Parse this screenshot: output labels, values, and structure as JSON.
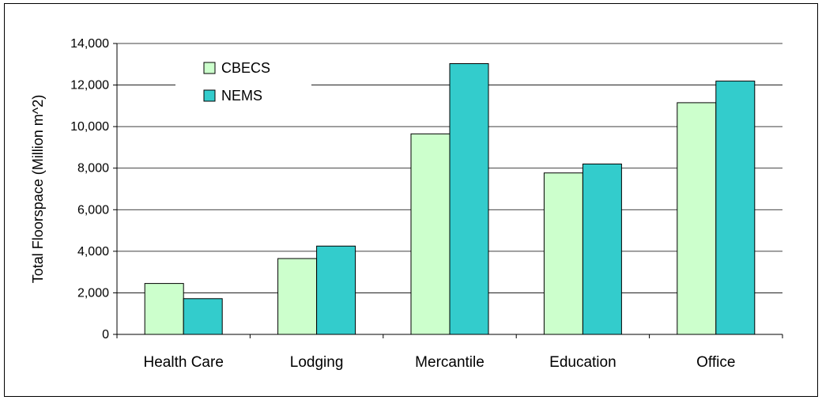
{
  "chart_data": {
    "type": "bar",
    "title": "",
    "xlabel": "",
    "ylabel": "Total Floorspace (Million m^2)",
    "categories": [
      "Health Care",
      "Lodging",
      "Mercantile",
      "Education",
      "Office"
    ],
    "series": [
      {
        "name": "CBECS",
        "color": "#ccffcc",
        "values": [
          2450,
          3650,
          9650,
          7770,
          11150
        ]
      },
      {
        "name": "NEMS",
        "color": "#33cccc",
        "values": [
          1720,
          4250,
          13030,
          8200,
          12190
        ]
      }
    ],
    "ylim": [
      0,
      14000
    ],
    "yticks": [
      0,
      2000,
      4000,
      6000,
      8000,
      10000,
      12000,
      14000
    ],
    "ytick_labels": [
      "0",
      "2,000",
      "4,000",
      "6,000",
      "8,000",
      "10,000",
      "12,000",
      "14,000"
    ],
    "grid": true,
    "legend_position": "top-left"
  }
}
